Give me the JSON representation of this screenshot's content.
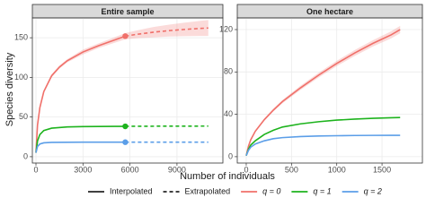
{
  "figure": {
    "y_label": "Species diversity",
    "x_label": "Number of individuals",
    "linetypes": [
      {
        "name": "Interpolated",
        "dash": "none"
      },
      {
        "name": "Extrapolated",
        "dash": "4 3"
      }
    ]
  },
  "chart_data": [
    {
      "type": "line",
      "title": "Entire sample",
      "xlim": [
        -230,
        11930
      ],
      "ylim": [
        -8,
        175
      ],
      "xticks": [
        0,
        3000,
        6000,
        9000
      ],
      "yticks": [
        0,
        50,
        100,
        150
      ],
      "grid": true,
      "observed_points": true,
      "series": [
        {
          "name": "q = 0",
          "linetype": "Interpolated",
          "color": "#f0706a",
          "x": [
            0,
            100,
            250,
            500,
            1000,
            1500,
            2000,
            3000,
            4000,
            5000,
            5700
          ],
          "values": [
            5,
            40,
            62,
            82,
            102,
            113,
            121,
            132,
            140,
            147,
            152
          ],
          "band": {
            "lower": [
              5,
              39,
              61,
              81,
              100,
              111,
              119,
              129,
              137,
              143.5,
              148
            ],
            "upper": [
              5,
              41,
              63,
              83,
              104,
              115,
              123,
              135,
              143,
              150.5,
              156
            ]
          }
        },
        {
          "name": "q = 0",
          "linetype": "Extrapolated",
          "color": "#f0706a",
          "x": [
            5700,
            6500,
            7500,
            8500,
            9500,
            10500,
            11000
          ],
          "values": [
            152,
            154.5,
            157,
            159,
            160.5,
            161.8,
            162.3
          ],
          "band": {
            "lower": [
              148,
              149.5,
              150.5,
              151.5,
              152,
              152.3,
              152.3
            ],
            "upper": [
              156,
              159.5,
              163.5,
              166.5,
              169,
              171.3,
              172.3
            ]
          }
        },
        {
          "name": "q = 1",
          "linetype": "Interpolated",
          "color": "#1db31d",
          "x": [
            0,
            100,
            250,
            500,
            1000,
            2000,
            3000,
            5700
          ],
          "values": [
            5,
            20,
            28,
            33,
            36,
            37.5,
            38,
            38.3
          ]
        },
        {
          "name": "q = 1",
          "linetype": "Extrapolated",
          "color": "#1db31d",
          "x": [
            5700,
            8000,
            11000
          ],
          "values": [
            38.3,
            38.5,
            38.6
          ]
        },
        {
          "name": "q = 2",
          "linetype": "Interpolated",
          "color": "#5b9ee8",
          "x": [
            0,
            100,
            250,
            500,
            1000,
            2000,
            3000,
            5700
          ],
          "values": [
            5,
            13,
            16,
            17.5,
            18,
            18.2,
            18.3,
            18.3
          ]
        },
        {
          "name": "q = 2",
          "linetype": "Extrapolated",
          "color": "#5b9ee8",
          "x": [
            5700,
            8000,
            11000
          ],
          "values": [
            18.3,
            18.3,
            18.3
          ]
        }
      ]
    },
    {
      "type": "line",
      "title": "One hectare",
      "xlim": [
        -99,
        1946
      ],
      "ylim": [
        -6,
        131
      ],
      "xticks": [
        0,
        500,
        1000,
        1500
      ],
      "yticks": [
        0,
        40,
        80,
        120
      ],
      "grid": true,
      "observed_points": false,
      "series": [
        {
          "name": "q = 0",
          "linetype": "Interpolated",
          "color": "#f0706a",
          "x": [
            0,
            25,
            50,
            100,
            200,
            300,
            400,
            600,
            800,
            1000,
            1200,
            1400,
            1600,
            1700
          ],
          "values": [
            1,
            10,
            16,
            24,
            35,
            44,
            52,
            65,
            77,
            88,
            98,
            107,
            115,
            120
          ],
          "band": {
            "lower": [
              1,
              9.5,
              15.3,
              23,
              33.8,
              42.7,
              50.5,
              63,
              74.8,
              85.5,
              95.2,
              104,
              111.7,
              116.5
            ],
            "upper": [
              1,
              10.5,
              16.7,
              25,
              36.2,
              45.3,
              53.5,
              67,
              79.2,
              90.5,
              100.8,
              110,
              118.3,
              123.5
            ]
          }
        },
        {
          "name": "q = 1",
          "linetype": "Interpolated",
          "color": "#1db31d",
          "x": [
            0,
            25,
            50,
            100,
            200,
            300,
            400,
            600,
            800,
            1000,
            1200,
            1400,
            1600,
            1700
          ],
          "values": [
            1,
            7,
            11,
            15,
            21,
            25,
            28,
            31,
            33,
            34.5,
            35.5,
            36.2,
            36.8,
            37
          ]
        },
        {
          "name": "q = 2",
          "linetype": "Interpolated",
          "color": "#5b9ee8",
          "x": [
            0,
            25,
            50,
            100,
            200,
            300,
            400,
            600,
            800,
            1000,
            1200,
            1400,
            1600,
            1700
          ],
          "values": [
            1,
            6,
            9,
            12,
            15,
            17,
            18,
            19,
            19.5,
            19.8,
            20,
            20.1,
            20.2,
            20.2
          ]
        }
      ]
    }
  ]
}
